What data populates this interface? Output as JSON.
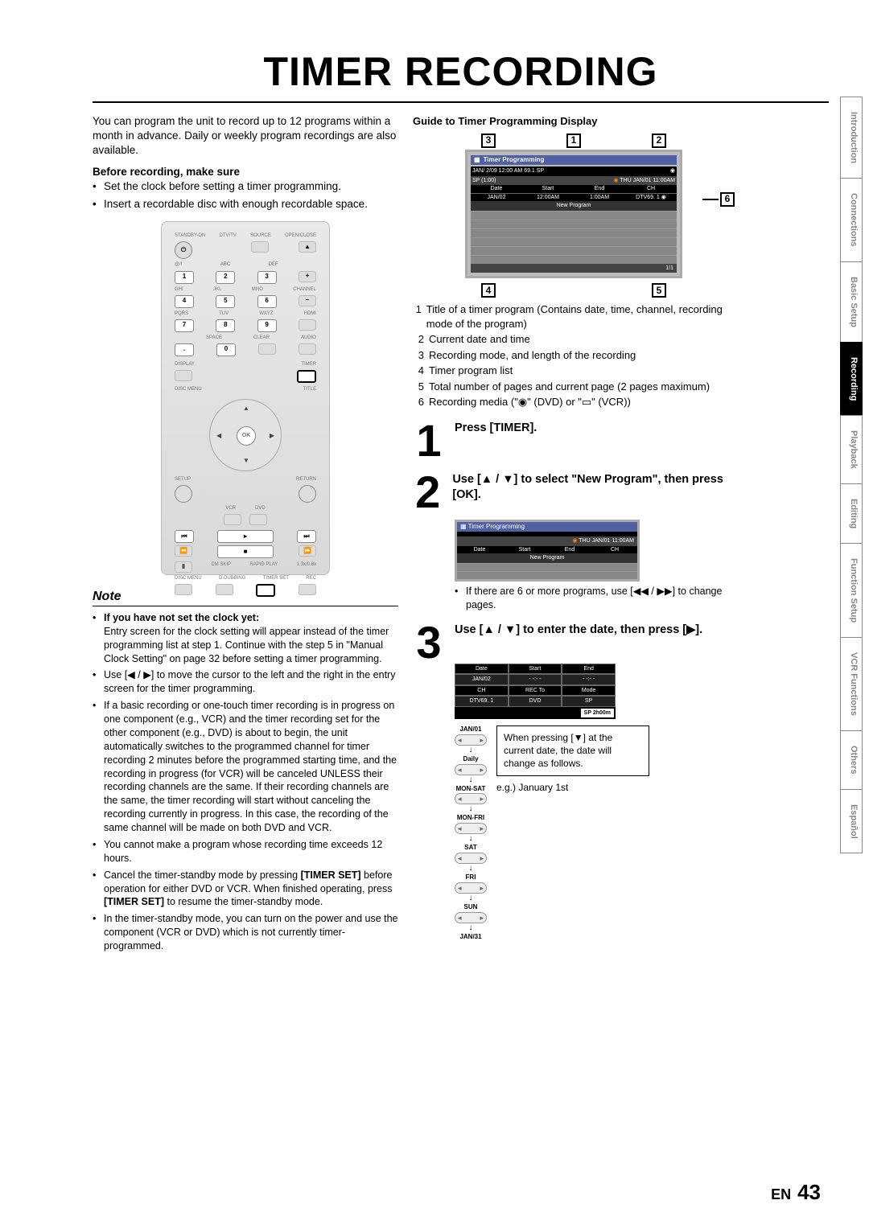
{
  "title": "TIMER RECORDING",
  "intro": "You can program the unit to record up to 12 programs within a month in advance. Daily or weekly program recordings are also available.",
  "before_head": "Before recording, make sure",
  "before_items": [
    "Set the clock before setting a timer programming.",
    "Insert a recordable disc with enough recordable space."
  ],
  "remote_labels": {
    "top": [
      "STANDBY-ON",
      "DTV/TV",
      "SOURCE",
      "OPEN/CLOSE"
    ],
    "row1_over": [
      "@/!",
      "ABC",
      "DEF",
      ""
    ],
    "row1": [
      "1",
      "2",
      "3",
      "+"
    ],
    "row2_over": [
      "GHI",
      "JKL",
      "MNO",
      "CHANNEL"
    ],
    "row2": [
      "4",
      "5",
      "6",
      "–"
    ],
    "row3_over": [
      "PQRS",
      "TUV",
      "WXYZ",
      "HDMI"
    ],
    "row3": [
      "7",
      "8",
      "9",
      ""
    ],
    "row4_over": [
      "",
      "SPACE",
      "CLEAR",
      "AUDIO"
    ],
    "row4": [
      ".",
      "0",
      "",
      ""
    ],
    "display": "DISPLAY",
    "timer": "TIMER",
    "discmenu": "DISC MENU",
    "title_b": "TITLE",
    "ok": "OK",
    "setup": "SETUP",
    "return": "RETURN",
    "vcr": "VCR",
    "dvd": "DVD",
    "bot1": [
      "CM SKIP",
      "RAPID PLAY",
      "1.3x/0.8x"
    ],
    "bot2": [
      "DISC MENU",
      "D.DUBBING",
      "TIMER SET",
      "REC"
    ]
  },
  "note_head": "Note",
  "note_sub": "If you have not set the clock yet:",
  "note_sub_body": "Entry screen for the clock setting will appear instead of the timer programming list at step 1. Continue with the step 5 in \"Manual Clock Setting\" on page 32 before setting a timer programming.",
  "note_items": [
    "Use [◀ / ▶] to move the cursor to the left and the right in the entry screen for the timer programming.",
    "If a basic recording or one-touch timer recording is in progress on one component (e.g., VCR) and the timer recording set for the other component (e.g., DVD) is about to begin, the unit automatically switches to the programmed channel for timer recording 2 minutes before the programmed starting time, and the recording in progress (for VCR) will be canceled UNLESS their recording channels are the same. If their recording channels are the same, the timer recording will start without canceling the recording currently in progress. In this case, the recording of the same channel will be made on both DVD and VCR.",
    "You cannot make a program whose recording time exceeds 12 hours.",
    "Cancel the timer-standby mode by pressing [TIMER SET] before operation for either DVD or VCR. When finished operating, press [TIMER SET] to resume the timer-standby mode.",
    "In the timer-standby mode, you can turn on the power and use the component (VCR or DVD) which is not currently timer-programmed."
  ],
  "guide_head": "Guide to Timer Programming Display",
  "display": {
    "hdr": "Timer Programming",
    "bar1_left": "JAN/ 2/09 12:00 AM 69.1 SP",
    "bar1_right_icon": "◉",
    "bar2_left": "SP (1:00)",
    "bar2_right": "THU JAN/01 11:00AM",
    "cols": [
      "Date",
      "Start",
      "End",
      "CH"
    ],
    "row": [
      "JAN/02",
      "12:00AM",
      "1:00AM",
      "DTV69. 1"
    ],
    "row_icon": "◉",
    "newprog": "New Program",
    "pager": "1/1"
  },
  "legend": [
    {
      "n": "1",
      "t": "Title of a timer program (Contains date, time, channel, recording mode of the program)"
    },
    {
      "n": "2",
      "t": "Current date and time"
    },
    {
      "n": "3",
      "t": "Recording mode, and length of the recording"
    },
    {
      "n": "4",
      "t": "Timer program list"
    },
    {
      "n": "5",
      "t": "Total number of pages and current page (2 pages maximum)"
    },
    {
      "n": "6",
      "t": "Recording media (\"◉\" (DVD) or \"▭\" (VCR))"
    }
  ],
  "callouts": [
    "3",
    "1",
    "2",
    "4",
    "5",
    "6"
  ],
  "steps": {
    "s1": "Press [TIMER].",
    "s2": "Use [▲ / ▼] to select \"New Program\", then press [OK].",
    "s2_mini": {
      "hdr": "Timer Programming",
      "right": "THU JAN/01 11:00AM",
      "cols": [
        "Date",
        "Start",
        "End",
        "CH"
      ],
      "new": "New Program"
    },
    "s2_note": "If there are 6 or more programs, use [◀◀ / ▶▶] to change pages.",
    "s3": "Use [▲ / ▼] to enter the date, then press [▶].",
    "s3_table": {
      "r1": [
        "Date",
        "Start",
        "End"
      ],
      "r2": [
        "JAN/02",
        "- -:- -",
        "- -:- -"
      ],
      "r3": [
        "CH",
        "REC To",
        "Mode"
      ],
      "r4": [
        "DTV69. 1",
        "DVD",
        "SP"
      ],
      "bot": "SP  2h00m"
    },
    "s3_flow": [
      "JAN/01",
      "Daily",
      "MON-SAT",
      "MON-FRI",
      "SAT",
      "FRI",
      "SUN",
      "JAN/31"
    ],
    "s3_info": "When pressing [▼] at the current date, the date will change as follows.",
    "s3_eg": "e.g.) January 1st"
  },
  "tabs": [
    "Introduction",
    "Connections",
    "Basic Setup",
    "Recording",
    "Playback",
    "Editing",
    "Function Setup",
    "VCR Functions",
    "Others",
    "Español"
  ],
  "active_tab": 3,
  "footer_lang": "EN",
  "footer_page": "43"
}
